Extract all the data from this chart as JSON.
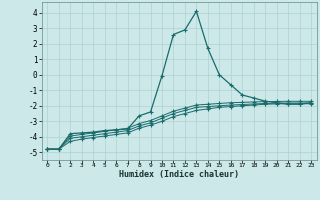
{
  "xlabel": "Humidex (Indice chaleur)",
  "xlim": [
    -0.5,
    23.5
  ],
  "ylim": [
    -5.5,
    4.7
  ],
  "xticks": [
    0,
    1,
    2,
    3,
    4,
    5,
    6,
    7,
    8,
    9,
    10,
    11,
    12,
    13,
    14,
    15,
    16,
    17,
    18,
    19,
    20,
    21,
    22,
    23
  ],
  "yticks": [
    -5,
    -4,
    -3,
    -2,
    -1,
    0,
    1,
    2,
    3,
    4
  ],
  "background_color": "#cce8e8",
  "grid_color": "#b0d0d0",
  "line_color": "#1a6b6b",
  "series": [
    {
      "x": [
        0,
        1,
        2,
        3,
        4,
        5,
        6,
        7,
        8,
        9,
        10,
        11,
        12,
        13,
        14,
        15,
        16,
        17,
        18,
        19,
        20,
        21,
        22,
        23
      ],
      "y": [
        -4.8,
        -4.8,
        -3.8,
        -3.75,
        -3.7,
        -3.6,
        -3.55,
        -3.5,
        -2.65,
        -2.4,
        -0.05,
        2.6,
        2.9,
        4.1,
        1.7,
        0.0,
        -0.65,
        -1.3,
        -1.5,
        -1.7,
        -1.8,
        -1.9,
        -1.9,
        -1.8
      ]
    },
    {
      "x": [
        0,
        1,
        2,
        3,
        4,
        5,
        6,
        7,
        8,
        9,
        10,
        11,
        12,
        13,
        14,
        15,
        16,
        17,
        18,
        19,
        20,
        21,
        22,
        23
      ],
      "y": [
        -4.8,
        -4.8,
        -4.3,
        -4.15,
        -4.05,
        -3.95,
        -3.85,
        -3.75,
        -3.45,
        -3.25,
        -3.0,
        -2.7,
        -2.5,
        -2.3,
        -2.2,
        -2.1,
        -2.05,
        -2.0,
        -1.95,
        -1.9,
        -1.88,
        -1.87,
        -1.87,
        -1.87
      ]
    },
    {
      "x": [
        0,
        1,
        2,
        3,
        4,
        5,
        6,
        7,
        8,
        9,
        10,
        11,
        12,
        13,
        14,
        15,
        16,
        17,
        18,
        19,
        20,
        21,
        22,
        23
      ],
      "y": [
        -4.8,
        -4.8,
        -4.1,
        -4.0,
        -3.9,
        -3.8,
        -3.7,
        -3.6,
        -3.3,
        -3.1,
        -2.8,
        -2.5,
        -2.3,
        -2.1,
        -2.05,
        -2.0,
        -1.95,
        -1.92,
        -1.88,
        -1.85,
        -1.83,
        -1.82,
        -1.82,
        -1.82
      ]
    },
    {
      "x": [
        0,
        1,
        2,
        3,
        4,
        5,
        6,
        7,
        8,
        9,
        10,
        11,
        12,
        13,
        14,
        15,
        16,
        17,
        18,
        19,
        20,
        21,
        22,
        23
      ],
      "y": [
        -4.8,
        -4.8,
        -3.95,
        -3.85,
        -3.75,
        -3.65,
        -3.55,
        -3.45,
        -3.15,
        -2.95,
        -2.65,
        -2.35,
        -2.15,
        -1.95,
        -1.9,
        -1.85,
        -1.8,
        -1.78,
        -1.75,
        -1.73,
        -1.72,
        -1.71,
        -1.71,
        -1.71
      ]
    }
  ]
}
